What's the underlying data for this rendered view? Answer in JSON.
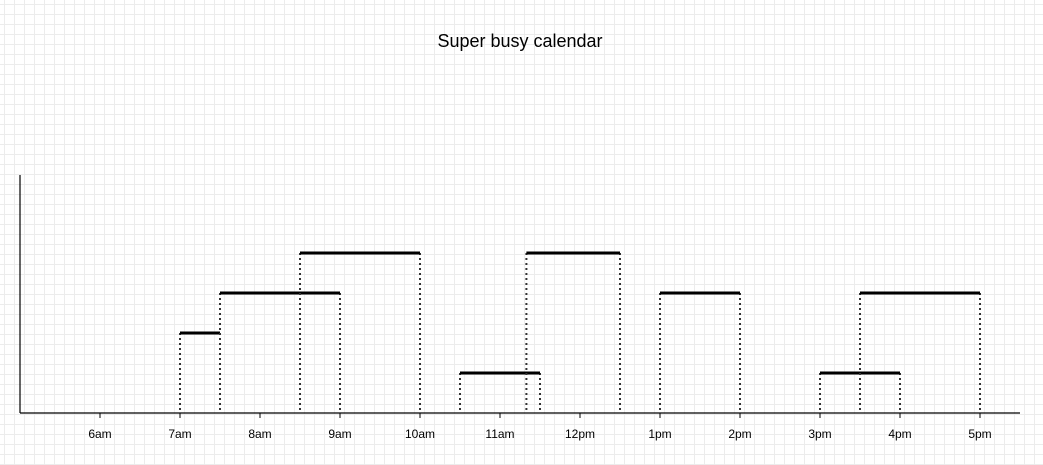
{
  "title": "Super busy calendar",
  "chart_data": {
    "type": "timeline",
    "x_axis": {
      "range_hours": [
        5,
        17.5
      ],
      "ticks": [
        {
          "hour": 6,
          "label": "6am"
        },
        {
          "hour": 7,
          "label": "7am"
        },
        {
          "hour": 8,
          "label": "8am"
        },
        {
          "hour": 9,
          "label": "9am"
        },
        {
          "hour": 10,
          "label": "10am"
        },
        {
          "hour": 11,
          "label": "11am"
        },
        {
          "hour": 12,
          "label": "12pm"
        },
        {
          "hour": 13,
          "label": "1pm"
        },
        {
          "hour": 14,
          "label": "2pm"
        },
        {
          "hour": 15,
          "label": "3pm"
        },
        {
          "hour": 16,
          "label": "4pm"
        },
        {
          "hour": 17,
          "label": "5pm"
        }
      ]
    },
    "events": [
      {
        "start": 7.0,
        "end": 7.5,
        "level": 2
      },
      {
        "start": 7.5,
        "end": 9.0,
        "level": 3
      },
      {
        "start": 8.5,
        "end": 10.0,
        "level": 4
      },
      {
        "start": 10.5,
        "end": 11.5,
        "level": 1
      },
      {
        "start": 11.33,
        "end": 12.5,
        "level": 4
      },
      {
        "start": 13.0,
        "end": 14.0,
        "level": 3
      },
      {
        "start": 15.0,
        "end": 16.0,
        "level": 1
      },
      {
        "start": 15.5,
        "end": 17.0,
        "level": 3
      }
    ],
    "max_level": 6
  }
}
